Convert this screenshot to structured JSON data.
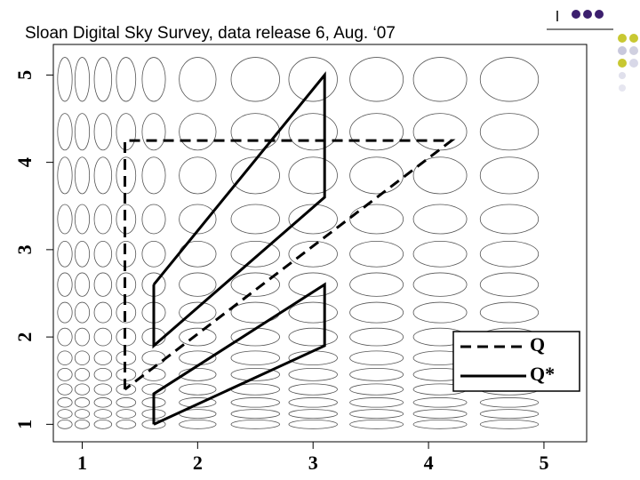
{
  "chart_data": {
    "type": "line",
    "title": "Sloan Digital Sky Survey, data release 6, Aug. ‘07",
    "xlim": [
      0.75,
      5.37
    ],
    "ylim": [
      0.8,
      5.35
    ],
    "xticks": [
      1,
      2,
      3,
      4,
      5
    ],
    "yticks": [
      1,
      2,
      3,
      4,
      5
    ],
    "legend": "bottom-right",
    "series": [
      {
        "name": "Q",
        "color": "#000000",
        "dash": true,
        "x": [
          1.37,
          1.37,
          4.2,
          1.37
        ],
        "values": [
          1.4,
          4.25,
          4.25,
          1.4
        ]
      },
      {
        "name": "Q*",
        "color": "#000000",
        "dash": false,
        "x": [
          1.62,
          1.62,
          3.1,
          3.1,
          1.62,
          null,
          1.62,
          1.62,
          3.1,
          3.1,
          1.62
        ],
        "values": [
          2.6,
          1.9,
          3.6,
          5.0,
          2.6,
          null,
          1.0,
          1.35,
          2.6,
          1.9,
          1.0
        ]
      }
    ]
  }
}
